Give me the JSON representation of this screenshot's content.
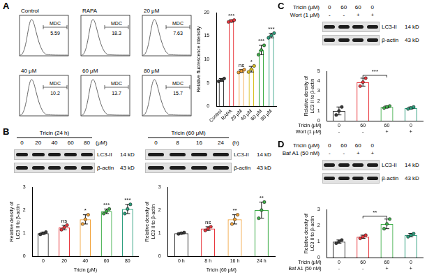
{
  "panel_labels": [
    "A",
    "B",
    "C",
    "D"
  ],
  "flow_cytometry": {
    "panel": "A",
    "gate_label": "MDC",
    "plots": [
      {
        "title": "Control",
        "value": 5.59
      },
      {
        "title": "RAPA",
        "value": 18.3
      },
      {
        "title": "20 μM",
        "value": 7.63
      },
      {
        "title": "40 μM",
        "value": 10.2
      },
      {
        "title": "60 μM",
        "value": 13.7
      },
      {
        "title": "80 μM",
        "value": 15.7
      }
    ]
  },
  "blots": [
    {
      "panel": "B",
      "title": "Tricin (24 h)",
      "unit": "(μM)",
      "rows": [
        {
          "lanes": [
            "0",
            "20",
            "40",
            "60",
            "80"
          ]
        }
      ],
      "bands": [
        {
          "name": "LC3-II",
          "size": "14 kD"
        },
        {
          "name": "β-actin",
          "size": "43 kD"
        }
      ]
    },
    {
      "panel": "B",
      "title": "Tricin (60 μM)",
      "unit": "(h)",
      "rows": [
        {
          "lanes": [
            "0",
            "8",
            "16",
            "24"
          ]
        }
      ],
      "bands": [
        {
          "name": "LC3-II",
          "size": "14 kD"
        },
        {
          "name": "β-actin",
          "size": "43 kD"
        }
      ]
    },
    {
      "panel": "C",
      "rows": [
        {
          "label": "Tricin (μM)",
          "lanes": [
            "0",
            "60",
            "60",
            "0"
          ]
        },
        {
          "label": "Wort (1 μM)",
          "lanes": [
            "-",
            "-",
            "+",
            "+"
          ]
        }
      ],
      "bands": [
        {
          "name": "LC3-II",
          "size": "14 kD"
        },
        {
          "name": "β-actin",
          "size": "43 kD"
        }
      ]
    },
    {
      "panel": "D",
      "rows": [
        {
          "label": "Tricin (μM)",
          "lanes": [
            "0",
            "60",
            "60",
            "0"
          ]
        },
        {
          "label": "Baf A1 (50 nM)",
          "lanes": [
            "-",
            "-",
            "+",
            "+"
          ]
        }
      ],
      "bands": [
        {
          "name": "LC3-II",
          "size": "14 kD"
        },
        {
          "name": "β-actin",
          "size": "43 kD"
        }
      ]
    }
  ],
  "chart_data": [
    {
      "panel": "A",
      "type": "bar",
      "y_label": "Relative fluorescence intensity",
      "categories": [
        "Control",
        "RAPA",
        "20 μM",
        "40 μM",
        "60 μM",
        "80 μM"
      ],
      "values": [
        5.6,
        18.2,
        7.5,
        7.9,
        12.0,
        15.1
      ],
      "errors": [
        0.3,
        0.25,
        0.3,
        0.6,
        1.0,
        0.5
      ],
      "points": [
        [
          5.3,
          5.6,
          5.9
        ],
        [
          18.0,
          18.2,
          18.4
        ],
        [
          7.2,
          7.5,
          7.8
        ],
        [
          7.3,
          7.9,
          8.6
        ],
        [
          11.0,
          12.0,
          13.0
        ],
        [
          14.6,
          15.1,
          15.6
        ]
      ],
      "significance": [
        null,
        "***",
        "ns",
        "*",
        "***",
        "***"
      ],
      "colors": [
        "#3a3a3a",
        "#e8363c",
        "#f2a33a",
        "#d9c022",
        "#3fae49",
        "#2e9f7e"
      ],
      "ylim": [
        0,
        20
      ],
      "yticks": [
        0,
        5,
        10,
        15,
        20
      ],
      "grid": false
    },
    {
      "panel": "B",
      "type": "bar",
      "y_label": [
        "Relative density of",
        "LC3 II to β-actin"
      ],
      "x_label": "Tricin (μM)",
      "categories": [
        "0",
        "20",
        "40",
        "60",
        "80"
      ],
      "values": [
        1.0,
        1.25,
        1.6,
        1.95,
        2.05
      ],
      "errors": [
        0.05,
        0.1,
        0.2,
        0.1,
        0.2
      ],
      "points": [
        [
          0.95,
          1.0,
          1.05
        ],
        [
          1.15,
          1.25,
          1.35
        ],
        [
          1.4,
          1.6,
          1.8
        ],
        [
          1.85,
          1.95,
          2.05
        ],
        [
          1.85,
          2.05,
          2.25
        ]
      ],
      "significance": [
        null,
        "ns",
        "*",
        "***",
        "***"
      ],
      "colors": [
        "#3a3a3a",
        "#e8363c",
        "#f2a33a",
        "#3fae49",
        "#2e9f7e"
      ],
      "ylim": [
        0,
        3
      ],
      "yticks": [
        0,
        1,
        2,
        3
      ],
      "grid": false
    },
    {
      "panel": "B",
      "type": "bar",
      "y_label": [
        "Relative density of",
        "LC3 II to β-actin"
      ],
      "x_label": "Tricin (60 μM)",
      "categories": [
        "0 h",
        "8 h",
        "16 h",
        "24 h"
      ],
      "values": [
        1.0,
        1.2,
        1.6,
        2.0
      ],
      "errors": [
        0.03,
        0.08,
        0.2,
        0.35
      ],
      "points": [
        [
          0.97,
          1.0,
          1.03
        ],
        [
          1.12,
          1.2,
          1.28
        ],
        [
          1.4,
          1.6,
          1.8
        ],
        [
          1.65,
          2.0,
          2.35
        ]
      ],
      "significance": [
        null,
        "ns",
        "**",
        "**"
      ],
      "colors": [
        "#3a3a3a",
        "#e8363c",
        "#f2a33a",
        "#3fae49"
      ],
      "ylim": [
        0,
        3
      ],
      "yticks": [
        0,
        1,
        2,
        3
      ],
      "grid": false
    },
    {
      "panel": "C",
      "type": "bar",
      "y_label": [
        "Relative density of",
        "LC3 II to β-actin"
      ],
      "category_rows": [
        "Tricin (μM)",
        "Wort (1 μM)"
      ],
      "categories": [
        [
          "0",
          "-"
        ],
        [
          "60",
          "-"
        ],
        [
          "60",
          "+"
        ],
        [
          "0",
          "+"
        ]
      ],
      "values": [
        1.0,
        3.9,
        1.4,
        1.3
      ],
      "errors": [
        0.4,
        0.4,
        0.1,
        0.1
      ],
      "points": [
        [
          0.6,
          1.0,
          1.4
        ],
        [
          3.5,
          3.9,
          4.3
        ],
        [
          1.3,
          1.4,
          1.5
        ],
        [
          1.2,
          1.3,
          1.4
        ]
      ],
      "comparisons": [
        {
          "from": 1,
          "to": 2,
          "label": "***"
        }
      ],
      "colors": [
        "#3a3a3a",
        "#e8363c",
        "#3fae49",
        "#2e9f7e"
      ],
      "ylim": [
        0,
        5
      ],
      "yticks": [
        0,
        1,
        2,
        3,
        4,
        5
      ],
      "grid": false
    },
    {
      "panel": "D",
      "type": "bar",
      "y_label": [
        "Relative density of",
        "LC3 II to β-actin"
      ],
      "category_rows": [
        "Tricin (μM)",
        "Baf A1 (50 nM)"
      ],
      "categories": [
        [
          "0",
          "-"
        ],
        [
          "60",
          "-"
        ],
        [
          "60",
          "+"
        ],
        [
          "0",
          "+"
        ]
      ],
      "values": [
        1.0,
        1.3,
        2.1,
        1.4
      ],
      "errors": [
        0.1,
        0.1,
        0.3,
        0.1
      ],
      "points": [
        [
          0.9,
          1.0,
          1.1
        ],
        [
          1.2,
          1.3,
          1.4
        ],
        [
          1.8,
          2.1,
          2.4
        ],
        [
          1.3,
          1.4,
          1.5
        ]
      ],
      "comparisons": [
        {
          "from": 1,
          "to": 2,
          "label": "**"
        }
      ],
      "colors": [
        "#3a3a3a",
        "#e8363c",
        "#3fae49",
        "#2e9f7e"
      ],
      "ylim": [
        0,
        3
      ],
      "yticks": [
        0,
        1,
        2,
        3
      ],
      "grid": false
    }
  ]
}
